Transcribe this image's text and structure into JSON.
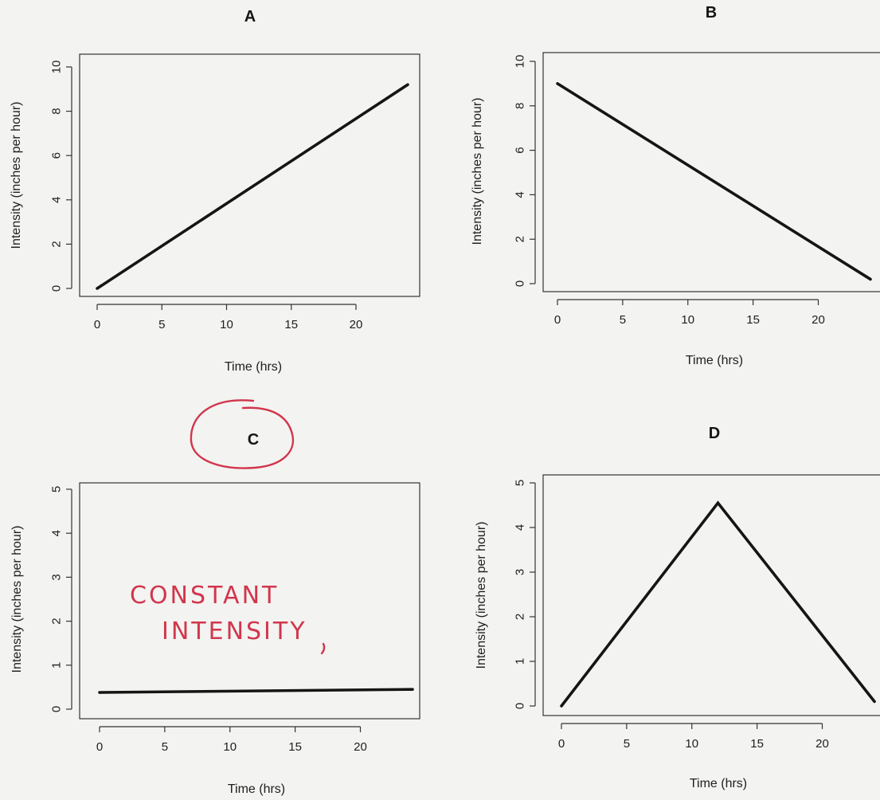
{
  "chart_data": [
    {
      "type": "line",
      "title": "A",
      "xlabel": "Time (hrs)",
      "ylabel": "Intensity (inches per hour)",
      "xlim": [
        0,
        24
      ],
      "ylim": [
        0,
        10
      ],
      "xticks": [
        0,
        5,
        10,
        15,
        20
      ],
      "yticks": [
        0,
        2,
        4,
        6,
        8,
        10
      ],
      "grid": false,
      "series": [
        {
          "x": [
            0,
            24
          ],
          "y": [
            0,
            9.2
          ]
        }
      ]
    },
    {
      "type": "line",
      "title": "B",
      "xlabel": "Time (hrs)",
      "ylabel": "Intensity (inches per hour)",
      "xlim": [
        0,
        24
      ],
      "ylim": [
        0,
        10
      ],
      "xticks": [
        0,
        5,
        10,
        15,
        20
      ],
      "yticks": [
        0,
        2,
        4,
        6,
        8,
        10
      ],
      "grid": false,
      "series": [
        {
          "x": [
            0,
            24
          ],
          "y": [
            9.0,
            0.2
          ]
        }
      ]
    },
    {
      "type": "line",
      "title": "C",
      "xlabel": "Time (hrs)",
      "ylabel": "Intensity (inches per hour)",
      "xlim": [
        0,
        24
      ],
      "ylim": [
        0,
        5
      ],
      "xticks": [
        0,
        5,
        10,
        15,
        20
      ],
      "yticks": [
        0,
        1,
        2,
        3,
        4,
        5
      ],
      "grid": false,
      "series": [
        {
          "x": [
            0,
            24
          ],
          "y": [
            0.38,
            0.45
          ]
        }
      ],
      "annotation": {
        "line1": "CONSTANT",
        "line2": "INTENSITY"
      }
    },
    {
      "type": "line",
      "title": "D",
      "xlabel": "Time (hrs)",
      "ylabel": "Intensity (inches per hour)",
      "xlim": [
        0,
        24
      ],
      "ylim": [
        0,
        5
      ],
      "xticks": [
        0,
        5,
        10,
        15,
        20
      ],
      "yticks": [
        0,
        1,
        2,
        3,
        4,
        5
      ],
      "grid": false,
      "series": [
        {
          "x": [
            0,
            12,
            24
          ],
          "y": [
            0,
            4.55,
            0.1
          ]
        }
      ]
    }
  ],
  "colors": {
    "line": "#151515",
    "annotation_ink": "#d1364d",
    "background": "#f3f3f1"
  }
}
